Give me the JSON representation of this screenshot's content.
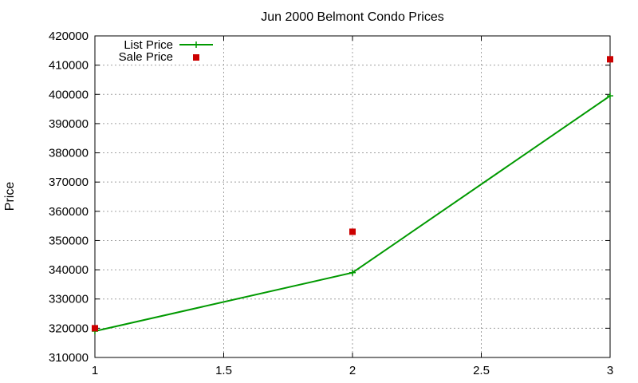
{
  "chart_data": {
    "type": "line",
    "title": "Jun 2000 Belmont Condo Prices",
    "xlabel": "",
    "ylabel": "Price",
    "xlim": [
      1,
      3
    ],
    "ylim": [
      310000,
      420000
    ],
    "x_ticks": [
      1,
      1.5,
      2,
      2.5,
      3
    ],
    "x_tick_labels": [
      "1",
      "1.5",
      "2",
      "2.5",
      "3"
    ],
    "y_ticks": [
      310000,
      320000,
      330000,
      340000,
      350000,
      360000,
      370000,
      380000,
      390000,
      400000,
      410000,
      420000
    ],
    "y_tick_labels": [
      "310000",
      "320000",
      "330000",
      "340000",
      "350000",
      "360000",
      "370000",
      "380000",
      "390000",
      "400000",
      "410000",
      "420000"
    ],
    "grid": true,
    "legend_position": "top-left",
    "series": [
      {
        "name": "List Price",
        "style": "line-with-plus-markers",
        "color": "#009900",
        "x": [
          1,
          2,
          3
        ],
        "values": [
          319000,
          339000,
          399500
        ]
      },
      {
        "name": "Sale Price",
        "style": "square-points",
        "color": "#cc0000",
        "x": [
          1,
          2,
          3
        ],
        "values": [
          320000,
          353000,
          412000
        ]
      }
    ]
  }
}
